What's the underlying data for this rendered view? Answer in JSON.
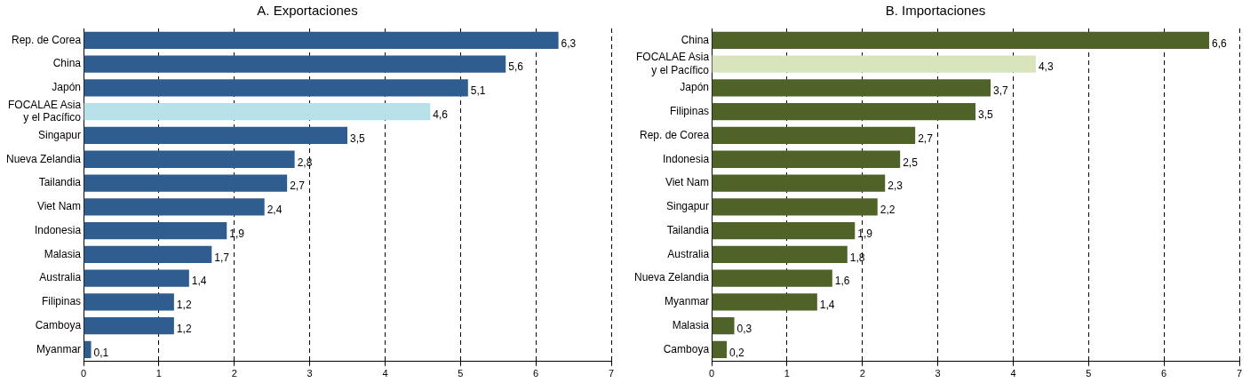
{
  "chart_data": [
    {
      "type": "bar",
      "title": "A. Exportaciones",
      "orientation": "horizontal",
      "categories": [
        "Rep. de Corea",
        "China",
        "Japón",
        "FOCALAE Asia\ny el Pacífico",
        "Singapur",
        "Nueva Zelandia",
        "Tailandia",
        "Viet Nam",
        "Indonesia",
        "Malasia",
        "Australia",
        "Filipinas",
        "Camboya",
        "Myanmar"
      ],
      "values": [
        6.3,
        5.6,
        5.1,
        4.6,
        3.5,
        2.8,
        2.7,
        2.4,
        1.9,
        1.7,
        1.4,
        1.2,
        1.2,
        0.1
      ],
      "colors": [
        "#2f5d8f",
        "#2f5d8f",
        "#2f5d8f",
        "#b8e0e9",
        "#2f5d8f",
        "#2f5d8f",
        "#2f5d8f",
        "#2f5d8f",
        "#2f5d8f",
        "#2f5d8f",
        "#2f5d8f",
        "#2f5d8f",
        "#2f5d8f",
        "#2f5d8f"
      ],
      "value_labels": [
        "6,3",
        "5,6",
        "5,1",
        "4,6",
        "3,5",
        "2,8",
        "2,7",
        "2,4",
        "1,9",
        "1,7",
        "1,4",
        "1,2",
        "1,2",
        "0,1"
      ],
      "xlim": [
        0,
        7
      ],
      "xticks": [
        0,
        1,
        2,
        3,
        4,
        5,
        6,
        7
      ],
      "grid": "x",
      "legend": false
    },
    {
      "type": "bar",
      "title": "B. Importaciones",
      "orientation": "horizontal",
      "categories": [
        "China",
        "FOCALAE Asia\ny el Pacífico",
        "Japón",
        "Filipinas",
        "Rep. de Corea",
        "Indonesia",
        "Viet Nam",
        "Singapur",
        "Tailandia",
        "Australia",
        "Nueva Zelandia",
        "Myanmar",
        "Malasia",
        "Camboya"
      ],
      "values": [
        6.6,
        4.3,
        3.7,
        3.5,
        2.7,
        2.5,
        2.3,
        2.2,
        1.9,
        1.8,
        1.6,
        1.4,
        0.3,
        0.2
      ],
      "colors": [
        "#4f6228",
        "#d8e4bc",
        "#4f6228",
        "#4f6228",
        "#4f6228",
        "#4f6228",
        "#4f6228",
        "#4f6228",
        "#4f6228",
        "#4f6228",
        "#4f6228",
        "#4f6228",
        "#4f6228",
        "#4f6228"
      ],
      "value_labels": [
        "6,6",
        "4,3",
        "3,7",
        "3,5",
        "2,7",
        "2,5",
        "2,3",
        "2,2",
        "1,9",
        "1,8",
        "1,6",
        "1,4",
        "0,3",
        "0,2"
      ],
      "xlim": [
        0,
        7
      ],
      "xticks": [
        0,
        1,
        2,
        3,
        4,
        5,
        6,
        7
      ],
      "grid": "x",
      "legend": false
    }
  ]
}
